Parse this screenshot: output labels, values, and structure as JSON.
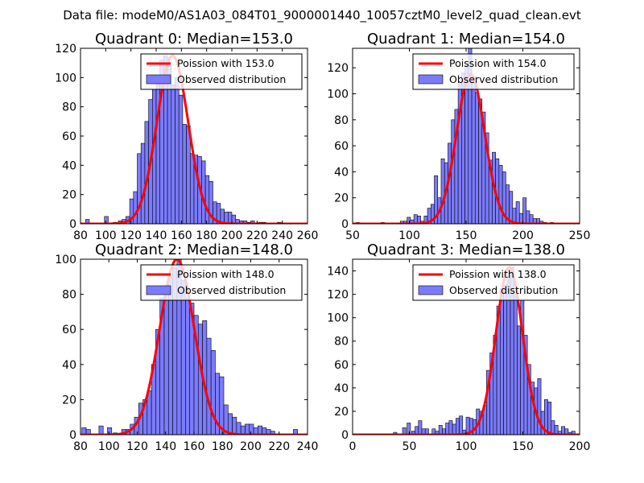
{
  "suptitle": "Data file: modeM0/AS1A03_084T01_9000001440_10057cztM0_level2_quad_clean.evt",
  "colors": {
    "hist_fill": "#7b7bff",
    "hist_edge": "#000000",
    "curve": "#ff0000",
    "legend_edge": "#000000"
  },
  "chart_data": [
    {
      "type": "bar",
      "title": "Quadrant 0: Median=153.0",
      "median": 153.0,
      "xlim": [
        80,
        260
      ],
      "ylim": [
        0,
        120
      ],
      "xticks": [
        80,
        100,
        120,
        140,
        160,
        180,
        200,
        220,
        240,
        260
      ],
      "xtick_labels": [
        "80",
        "100",
        "120",
        "140",
        "160",
        "180",
        "200",
        "220",
        "240",
        "260"
      ],
      "yticks": [
        0,
        20,
        40,
        60,
        80,
        100,
        120
      ],
      "legend": {
        "position": "top-right",
        "curve_label": "Poission with 153.0",
        "hist_label": "Observed distribution"
      },
      "bins": [
        [
          84,
          87,
          3
        ],
        [
          99,
          102,
          5
        ],
        [
          106,
          109,
          1
        ],
        [
          110,
          113,
          2
        ],
        [
          113,
          116,
          3
        ],
        [
          116,
          119,
          5
        ],
        [
          119,
          122,
          17
        ],
        [
          122,
          125,
          22
        ],
        [
          125,
          128,
          48
        ],
        [
          128,
          131,
          55
        ],
        [
          131,
          134,
          70
        ],
        [
          134,
          137,
          85
        ],
        [
          137,
          140,
          92
        ],
        [
          140,
          143,
          100
        ],
        [
          143,
          146,
          112
        ],
        [
          146,
          149,
          115
        ],
        [
          149,
          152,
          108
        ],
        [
          152,
          155,
          95
        ],
        [
          155,
          158,
          100
        ],
        [
          158,
          161,
          88
        ],
        [
          161,
          164,
          68
        ],
        [
          164,
          167,
          67
        ],
        [
          167,
          170,
          48
        ],
        [
          170,
          173,
          47
        ],
        [
          173,
          176,
          46
        ],
        [
          176,
          179,
          43
        ],
        [
          179,
          182,
          33
        ],
        [
          182,
          185,
          29
        ],
        [
          185,
          188,
          15
        ],
        [
          188,
          191,
          14
        ],
        [
          191,
          194,
          10
        ],
        [
          194,
          197,
          8
        ],
        [
          197,
          200,
          8
        ],
        [
          200,
          203,
          6
        ],
        [
          203,
          206,
          3
        ],
        [
          206,
          209,
          2
        ],
        [
          209,
          212,
          2
        ],
        [
          212,
          215,
          1
        ],
        [
          215,
          218,
          2
        ],
        [
          221,
          224,
          1
        ],
        [
          224,
          227,
          1
        ],
        [
          236,
          239,
          1
        ]
      ],
      "curve_mean": 153.0,
      "curve_peak": 115
    },
    {
      "type": "bar",
      "title": "Quadrant 1: Median=154.0",
      "median": 154.0,
      "xlim": [
        50,
        250
      ],
      "ylim": [
        0,
        135
      ],
      "xticks": [
        50,
        100,
        150,
        200,
        250
      ],
      "xtick_labels": [
        "50",
        "100",
        "150",
        "200",
        "250"
      ],
      "yticks": [
        0,
        20,
        40,
        60,
        80,
        100,
        120
      ],
      "legend": {
        "position": "top-right",
        "curve_label": "Poission with 154.0",
        "hist_label": "Observed distribution"
      },
      "bins": [
        [
          53,
          56,
          1
        ],
        [
          75,
          78,
          1
        ],
        [
          92,
          95,
          2
        ],
        [
          95,
          98,
          2
        ],
        [
          98,
          101,
          5
        ],
        [
          101,
          104,
          3
        ],
        [
          104,
          107,
          7
        ],
        [
          107,
          110,
          6
        ],
        [
          110,
          113,
          2
        ],
        [
          113,
          116,
          6
        ],
        [
          116,
          119,
          12
        ],
        [
          119,
          122,
          15
        ],
        [
          122,
          125,
          37
        ],
        [
          125,
          128,
          20
        ],
        [
          128,
          131,
          50
        ],
        [
          131,
          134,
          47
        ],
        [
          134,
          137,
          62
        ],
        [
          137,
          140,
          80
        ],
        [
          140,
          143,
          88
        ],
        [
          143,
          146,
          108
        ],
        [
          146,
          149,
          116
        ],
        [
          149,
          152,
          122
        ],
        [
          152,
          155,
          135
        ],
        [
          155,
          158,
          113
        ],
        [
          158,
          161,
          101
        ],
        [
          161,
          164,
          96
        ],
        [
          164,
          167,
          86
        ],
        [
          167,
          170,
          70
        ],
        [
          170,
          173,
          49
        ],
        [
          173,
          176,
          55
        ],
        [
          176,
          179,
          50
        ],
        [
          179,
          182,
          45
        ],
        [
          182,
          185,
          40
        ],
        [
          185,
          188,
          30
        ],
        [
          188,
          191,
          25
        ],
        [
          191,
          194,
          12
        ],
        [
          194,
          197,
          17
        ],
        [
          197,
          200,
          8
        ],
        [
          200,
          203,
          20
        ],
        [
          203,
          206,
          10
        ],
        [
          206,
          209,
          7
        ],
        [
          209,
          212,
          4
        ],
        [
          212,
          215,
          4
        ],
        [
          215,
          218,
          2
        ],
        [
          218,
          221,
          1
        ],
        [
          224,
          227,
          1
        ]
      ],
      "curve_mean": 154.0,
      "curve_peak": 115
    },
    {
      "type": "bar",
      "title": "Quadrant 2: Median=148.0",
      "median": 148.0,
      "xlim": [
        80,
        240
      ],
      "ylim": [
        0,
        100
      ],
      "xticks": [
        80,
        100,
        120,
        140,
        160,
        180,
        200,
        220,
        240
      ],
      "xtick_labels": [
        "80",
        "100",
        "120",
        "140",
        "160",
        "180",
        "200",
        "220",
        "240"
      ],
      "yticks": [
        0,
        20,
        40,
        60,
        80,
        100
      ],
      "legend": {
        "position": "top-right",
        "curve_label": "Poission with 148.0",
        "hist_label": "Observed distribution"
      },
      "bins": [
        [
          81,
          84,
          4
        ],
        [
          84,
          87,
          3
        ],
        [
          93,
          96,
          5
        ],
        [
          99,
          102,
          4
        ],
        [
          103,
          106,
          1
        ],
        [
          109,
          112,
          3
        ],
        [
          112,
          115,
          3
        ],
        [
          115,
          118,
          6
        ],
        [
          118,
          121,
          10
        ],
        [
          121,
          124,
          18
        ],
        [
          124,
          127,
          20
        ],
        [
          127,
          130,
          25
        ],
        [
          130,
          133,
          40
        ],
        [
          133,
          136,
          60
        ],
        [
          136,
          139,
          78
        ],
        [
          139,
          142,
          85
        ],
        [
          142,
          145,
          90
        ],
        [
          145,
          148,
          95
        ],
        [
          148,
          151,
          100
        ],
        [
          151,
          154,
          88
        ],
        [
          154,
          157,
          78
        ],
        [
          157,
          160,
          75
        ],
        [
          160,
          163,
          68
        ],
        [
          163,
          166,
          63
        ],
        [
          166,
          169,
          65
        ],
        [
          169,
          172,
          55
        ],
        [
          172,
          175,
          48
        ],
        [
          175,
          178,
          35
        ],
        [
          178,
          181,
          33
        ],
        [
          181,
          184,
          17
        ],
        [
          184,
          187,
          12
        ],
        [
          187,
          190,
          10
        ],
        [
          190,
          193,
          7
        ],
        [
          193,
          196,
          5
        ],
        [
          196,
          199,
          6
        ],
        [
          199,
          202,
          6
        ],
        [
          202,
          205,
          4
        ],
        [
          205,
          208,
          5
        ],
        [
          208,
          211,
          4
        ],
        [
          211,
          214,
          3
        ],
        [
          214,
          217,
          2
        ],
        [
          230,
          233,
          3
        ]
      ],
      "curve_mean": 148.0,
      "curve_peak": 100
    },
    {
      "type": "bar",
      "title": "Quadrant 3: Median=138.0",
      "median": 138.0,
      "xlim": [
        0,
        200
      ],
      "ylim": [
        0,
        150
      ],
      "xticks": [
        0,
        50,
        100,
        150,
        200
      ],
      "xtick_labels": [
        "0",
        "50",
        "100",
        "150",
        "200"
      ],
      "yticks": [
        0,
        20,
        40,
        60,
        80,
        100,
        120,
        140
      ],
      "legend": {
        "position": "top-right",
        "curve_label": "Poission with 138.0",
        "hist_label": "Observed distribution"
      },
      "bins": [
        [
          36,
          39,
          2
        ],
        [
          44,
          47,
          6
        ],
        [
          48,
          51,
          10
        ],
        [
          52,
          55,
          3
        ],
        [
          55,
          58,
          7
        ],
        [
          58,
          61,
          12
        ],
        [
          61,
          64,
          5
        ],
        [
          64,
          67,
          5
        ],
        [
          70,
          73,
          5
        ],
        [
          73,
          76,
          3
        ],
        [
          76,
          79,
          8
        ],
        [
          79,
          82,
          5
        ],
        [
          82,
          85,
          10
        ],
        [
          85,
          88,
          12
        ],
        [
          88,
          91,
          9
        ],
        [
          91,
          94,
          14
        ],
        [
          94,
          97,
          16
        ],
        [
          97,
          100,
          4
        ],
        [
          100,
          103,
          15
        ],
        [
          103,
          106,
          14
        ],
        [
          106,
          109,
          13
        ],
        [
          109,
          112,
          22
        ],
        [
          112,
          115,
          20
        ],
        [
          115,
          118,
          25
        ],
        [
          118,
          121,
          55
        ],
        [
          121,
          124,
          70
        ],
        [
          124,
          127,
          85
        ],
        [
          127,
          130,
          110
        ],
        [
          130,
          133,
          125
        ],
        [
          133,
          136,
          128
        ],
        [
          136,
          139,
          135
        ],
        [
          139,
          142,
          143
        ],
        [
          142,
          145,
          120
        ],
        [
          145,
          148,
          93
        ],
        [
          148,
          151,
          115
        ],
        [
          151,
          154,
          85
        ],
        [
          154,
          157,
          60
        ],
        [
          157,
          160,
          45
        ],
        [
          160,
          163,
          40
        ],
        [
          163,
          166,
          48
        ],
        [
          166,
          169,
          20
        ],
        [
          169,
          172,
          30
        ],
        [
          172,
          175,
          28
        ],
        [
          175,
          178,
          12
        ],
        [
          178,
          181,
          8
        ],
        [
          181,
          184,
          3
        ],
        [
          184,
          187,
          7
        ],
        [
          187,
          190,
          5
        ],
        [
          190,
          193,
          2
        ],
        [
          193,
          196,
          3
        ]
      ],
      "curve_mean": 138.0,
      "curve_peak": 143
    }
  ]
}
